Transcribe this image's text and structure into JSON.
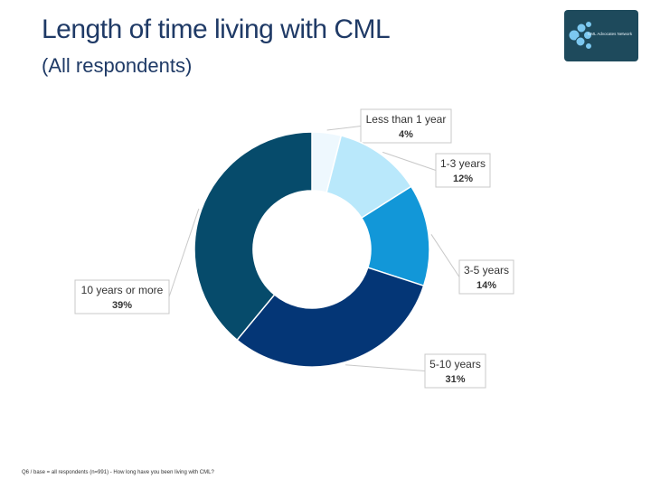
{
  "header": {
    "title": "Length of time living with CML",
    "subtitle": "(All respondents)"
  },
  "logo": {
    "text": "CML Advocates Network",
    "bg_color": "#1e4a5c",
    "mark_color": "#7cc8f0"
  },
  "chart_data": {
    "type": "pie",
    "variant": "donut",
    "title": "Length of time living with CML",
    "slices": [
      {
        "label": "Less than 1 year",
        "value": 4,
        "display": "4%",
        "color": "#eef8fe"
      },
      {
        "label": "1-3 years",
        "value": 12,
        "display": "12%",
        "color": "#b9e8fb"
      },
      {
        "label": "3-5 years",
        "value": 14,
        "display": "14%",
        "color": "#1297d8"
      },
      {
        "label": "5-10 years",
        "value": 31,
        "display": "31%",
        "color": "#043676"
      },
      {
        "label": "10 years or more",
        "value": 39,
        "display": "39%",
        "color": "#064b6b"
      }
    ],
    "legend": "none"
  },
  "footnote": {
    "text": "Q6 / base = all respondents (n=991) - How long have you been living with CML?"
  }
}
